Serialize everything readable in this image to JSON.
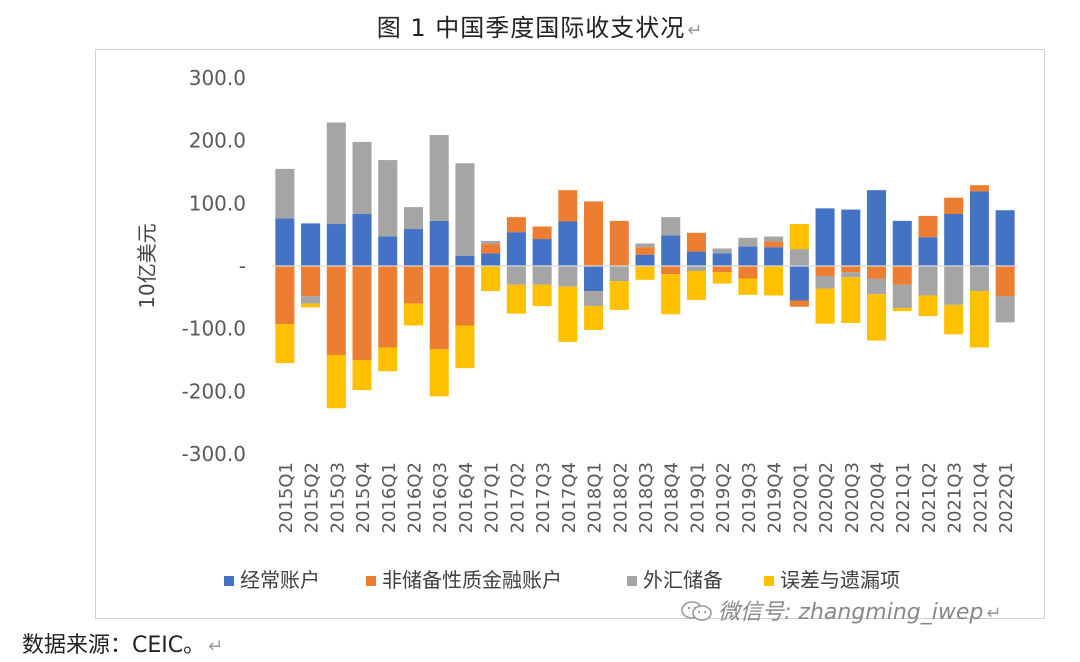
{
  "figure_title": "图 1    中国季度国际收支状况",
  "return_mark": "↵",
  "source_note": "数据来源：CEIC。",
  "watermark": "微信号: zhangming_iwep",
  "colors": {
    "current_account": "#4472C4",
    "non_reserve_financial": "#ED7D31",
    "fx_reserves": "#A5A5A5",
    "errors_omissions": "#FFC000"
  },
  "chart_data": {
    "type": "bar",
    "stacked": true,
    "title": "中国季度国际收支状况",
    "ylabel": "10亿美元",
    "ylim": [
      -300,
      300
    ],
    "yticks": [
      300,
      200,
      100,
      0,
      -100,
      -200,
      -300
    ],
    "ytick_labels": [
      "300.0",
      "200.0",
      "100.0",
      "-",
      "-100.0",
      "-200.0",
      "-300.0"
    ],
    "legend_position": "bottom",
    "categories": [
      "2015Q1",
      "2015Q2",
      "2015Q3",
      "2015Q4",
      "2016Q1",
      "2016Q2",
      "2016Q3",
      "2016Q4",
      "2017Q1",
      "2017Q2",
      "2017Q3",
      "2017Q4",
      "2018Q1",
      "2018Q2",
      "2018Q3",
      "2018Q4",
      "2019Q1",
      "2019Q2",
      "2019Q3",
      "2019Q4",
      "2020Q1",
      "2020Q2",
      "2020Q3",
      "2020Q4",
      "2021Q1",
      "2021Q2",
      "2021Q3",
      "2021Q4",
      "2022Q1"
    ],
    "series": [
      {
        "name": "经常账户",
        "key": "current_account",
        "values": [
          76,
          68,
          67,
          83,
          47,
          59,
          72,
          16,
          20,
          54,
          43,
          71,
          -40,
          0,
          18,
          49,
          23,
          20,
          31,
          30,
          -55,
          92,
          90,
          121,
          72,
          46,
          83,
          119,
          89
        ]
      },
      {
        "name": "非储备性质金融账户",
        "key": "non_reserve_financial",
        "values": [
          -93,
          -48,
          -142,
          -150,
          -130,
          -60,
          -133,
          -95,
          15,
          24,
          20,
          50,
          103,
          72,
          12,
          -13,
          30,
          -10,
          -20,
          9,
          -10,
          -16,
          -10,
          -20,
          -30,
          34,
          26,
          10,
          -48
        ]
      },
      {
        "name": "外汇储备",
        "key": "fx_reserves",
        "values": [
          79,
          -12,
          162,
          115,
          122,
          35,
          137,
          148,
          5,
          -30,
          -30,
          -33,
          -24,
          -24,
          6,
          29,
          -8,
          8,
          14,
          8,
          27,
          -20,
          -8,
          -25,
          -37,
          -47,
          -62,
          -40,
          -42
        ]
      },
      {
        "name": "误差与遗漏项",
        "key": "errors_omissions",
        "values": [
          -62,
          -6,
          -85,
          -48,
          -38,
          -35,
          -75,
          -68,
          -40,
          -46,
          -34,
          -88,
          -38,
          -46,
          -22,
          -64,
          -46,
          -18,
          -26,
          -47,
          40,
          -56,
          -73,
          -74,
          -5,
          -33,
          -47,
          -90,
          0
        ]
      }
    ]
  }
}
